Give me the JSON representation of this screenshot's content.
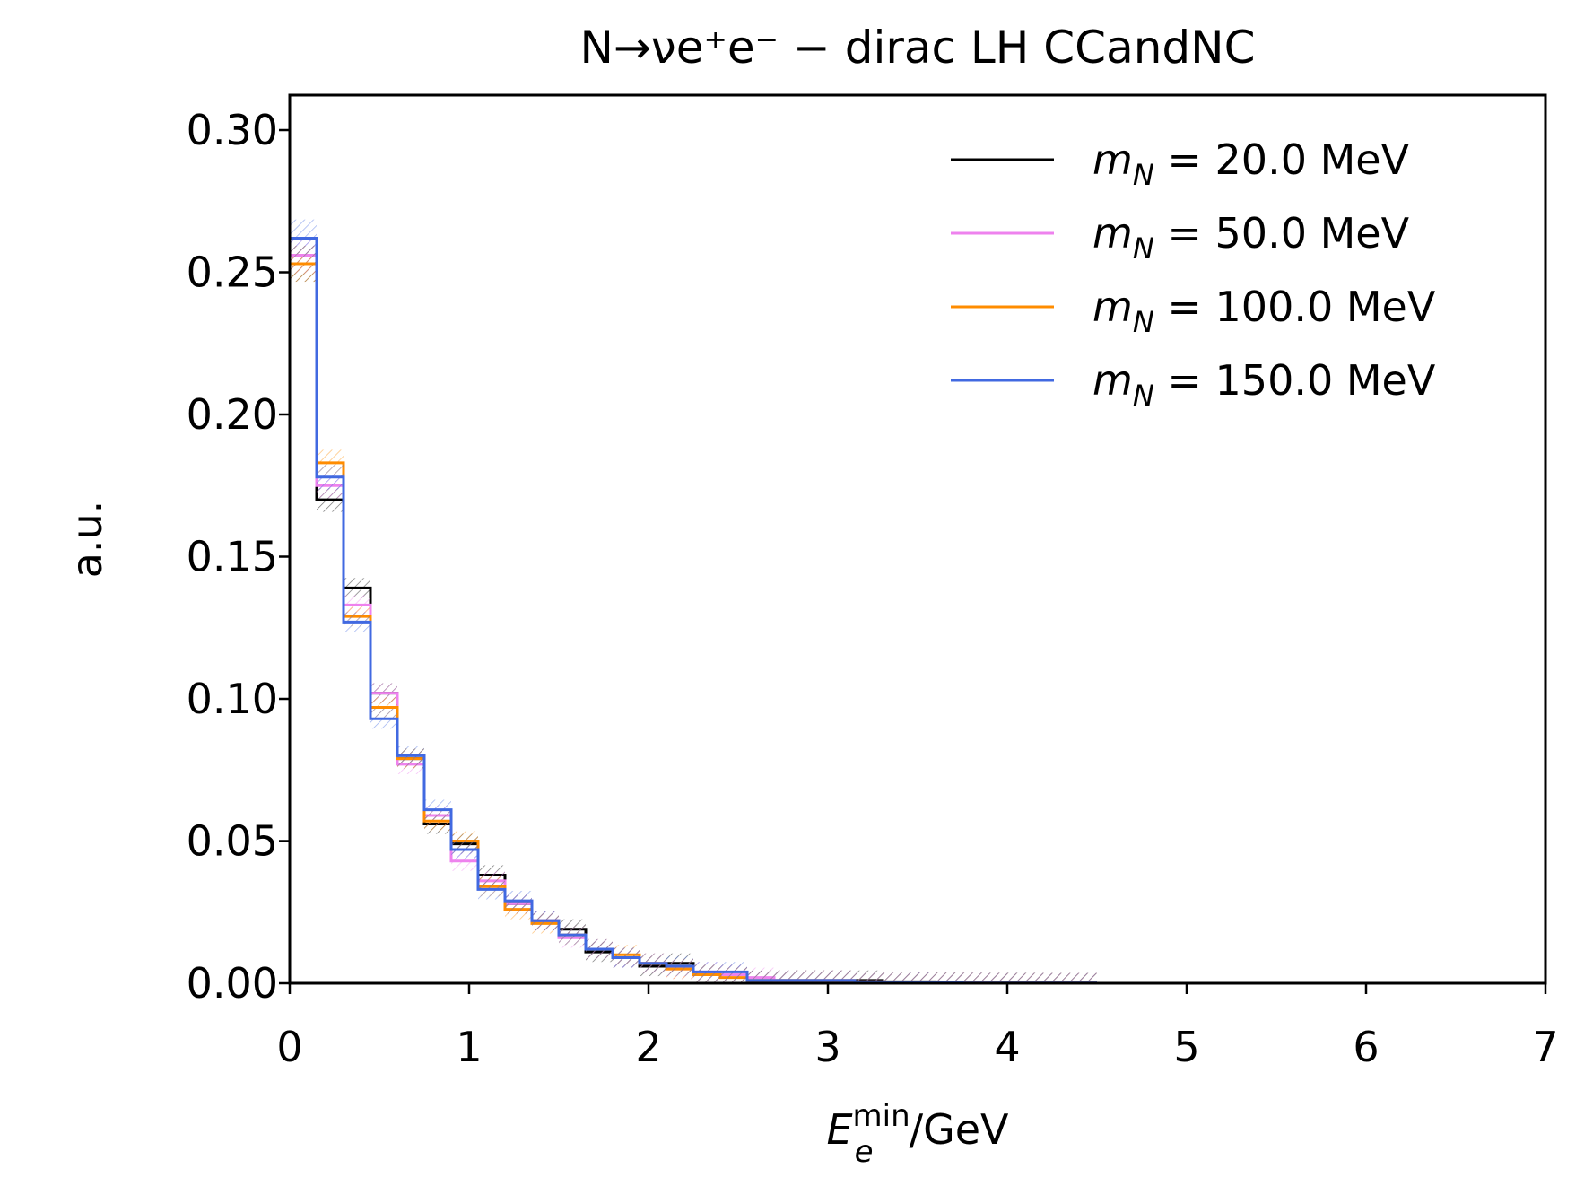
{
  "chart_data": {
    "type": "histogram-step",
    "title": "N→νe⁺e⁻ − dirac LH CCandNC",
    "xlabel": "E_e^min/GeV",
    "ylabel": "a.u.",
    "xlim": [
      0,
      7
    ],
    "ylim": [
      0,
      0.31
    ],
    "xticks": [
      "0",
      "1",
      "2",
      "3",
      "4",
      "5",
      "6",
      "7"
    ],
    "yticks": [
      "0.00",
      "0.05",
      "0.10",
      "0.15",
      "0.20",
      "0.25",
      "0.30"
    ],
    "legend_position": "top-right",
    "grid": false,
    "bin_edges": [
      0,
      0.15,
      0.3,
      0.45,
      0.6,
      0.75,
      0.9,
      1.05,
      1.2,
      1.35,
      1.5,
      1.65,
      1.8,
      1.95,
      2.1,
      2.25,
      2.4,
      2.55,
      2.7,
      2.85,
      3.0,
      3.15,
      3.3,
      3.45,
      3.6,
      3.75,
      3.9,
      4.05,
      4.2,
      4.35,
      4.5
    ],
    "series": [
      {
        "name": "m_N = 20.0 MeV",
        "color": "#000000",
        "values": [
          0.253,
          0.17,
          0.139,
          0.102,
          0.079,
          0.056,
          0.049,
          0.038,
          0.028,
          0.022,
          0.019,
          0.011,
          0.009,
          0.006,
          0.007,
          0.003,
          0.003,
          0.001,
          0.001,
          0.001,
          0.001,
          0.001,
          0.0005,
          0.0005,
          0.0003,
          0.0003,
          0.0002,
          0.0002,
          0.0001,
          0.0001
        ]
      },
      {
        "name": "m_N = 50.0 MeV",
        "color": "#ee82ee",
        "values": [
          0.256,
          0.175,
          0.133,
          0.102,
          0.077,
          0.059,
          0.043,
          0.036,
          0.028,
          0.022,
          0.016,
          0.012,
          0.009,
          0.007,
          0.005,
          0.004,
          0.003,
          0.002,
          0.001,
          0.001,
          0.001,
          0.0005,
          0.0004,
          0.0003,
          0.0002,
          0.0002,
          0.0001,
          0.0001,
          0.0001,
          0.0001
        ]
      },
      {
        "name": "m_N = 100.0 MeV",
        "color": "#ff8c00",
        "values": [
          0.253,
          0.183,
          0.129,
          0.097,
          0.079,
          0.057,
          0.05,
          0.034,
          0.026,
          0.021,
          0.017,
          0.012,
          0.01,
          0.007,
          0.005,
          0.003,
          0.002,
          0.001,
          0.001,
          0.001,
          0.001,
          0.0005,
          0.0003,
          0.0002,
          0.0002,
          0.0001,
          0.0001,
          0.0001,
          0.0001,
          0.0001
        ]
      },
      {
        "name": "m_N = 150.0 MeV",
        "color": "#4169e1",
        "values": [
          0.262,
          0.178,
          0.127,
          0.093,
          0.08,
          0.061,
          0.047,
          0.033,
          0.029,
          0.022,
          0.017,
          0.012,
          0.009,
          0.007,
          0.006,
          0.004,
          0.004,
          0.001,
          0.001,
          0.001,
          0.001,
          0.0005,
          0.0004,
          0.0003,
          0.0002,
          0.0001,
          0.0001,
          0.0001,
          0.0001,
          0.0001
        ]
      }
    ]
  }
}
